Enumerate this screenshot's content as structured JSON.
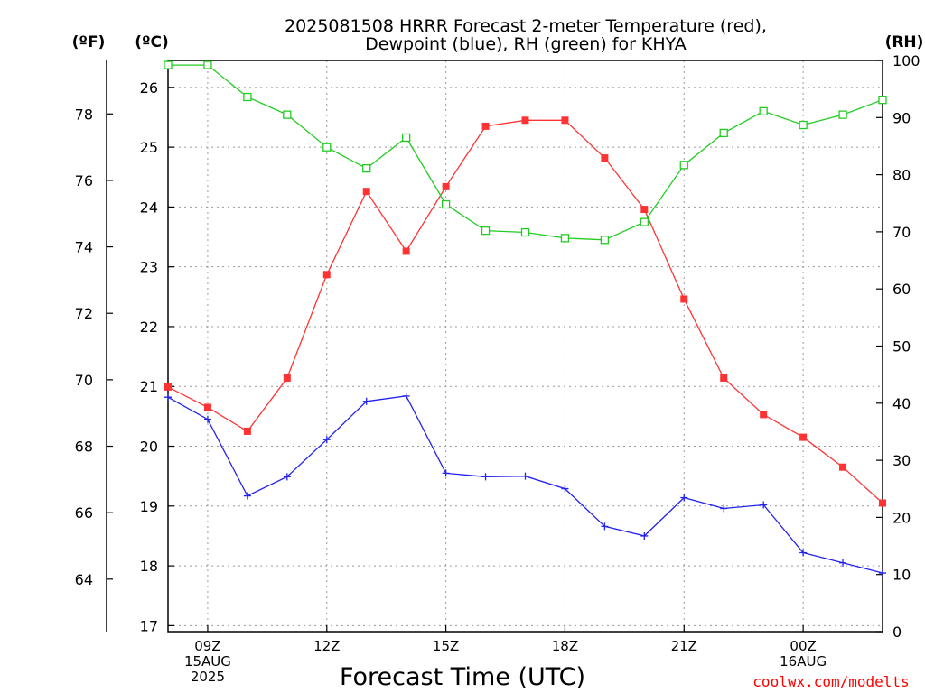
{
  "chart_data": {
    "type": "line",
    "title": [
      "2025081508 HRRR Forecast 2-meter Temperature (red),",
      "Dewpoint (blue), RH (green) for KHYA"
    ],
    "xlabel": "Forecast Time (UTC)",
    "credit": "coolwx.com/modelts",
    "axes": {
      "left_unit": "(ºF)",
      "center_unit": "(ºC)",
      "right_unit": "(RH)",
      "celsius_range": [
        16.9,
        26.45
      ],
      "fahrenheit_ticks": [
        "64",
        "66",
        "68",
        "70",
        "72",
        "74",
        "76",
        "78"
      ],
      "celsius_ticks": [
        "17",
        "18",
        "19",
        "20",
        "21",
        "22",
        "23",
        "24",
        "25",
        "26"
      ],
      "rh_range": [
        0,
        100
      ],
      "rh_ticks": [
        "0",
        "10",
        "20",
        "30",
        "40",
        "50",
        "60",
        "70",
        "80",
        "90",
        "100"
      ],
      "hour_range": [
        8,
        26
      ],
      "grid": true
    },
    "x_ticks": [
      {
        "hour": 9,
        "lines": [
          "09Z",
          "15AUG",
          "2025"
        ]
      },
      {
        "hour": 12,
        "lines": [
          "12Z"
        ]
      },
      {
        "hour": 15,
        "lines": [
          "15Z"
        ]
      },
      {
        "hour": 18,
        "lines": [
          "18Z"
        ]
      },
      {
        "hour": 21,
        "lines": [
          "21Z"
        ]
      },
      {
        "hour": 24,
        "lines": [
          "00Z",
          "16AUG"
        ]
      }
    ],
    "hours": [
      8,
      9,
      10,
      11,
      12,
      13,
      14,
      15,
      16,
      17,
      18,
      19,
      20,
      21,
      22,
      23,
      24,
      25,
      26
    ],
    "series": [
      {
        "name": "Temperature",
        "color": "#ff3333",
        "marker": "filled-square",
        "values": [
          20.99,
          20.65,
          20.25,
          21.14,
          22.87,
          24.26,
          23.26,
          24.34,
          25.35,
          25.45,
          25.45,
          24.82,
          23.96,
          22.46,
          21.14,
          20.53,
          20.15,
          19.65,
          19.05
        ]
      },
      {
        "name": "Dewpoint",
        "color": "#2222ee",
        "marker": "plus",
        "values": [
          20.82,
          20.45,
          19.17,
          19.49,
          20.11,
          20.75,
          20.84,
          19.55,
          19.49,
          19.5,
          19.29,
          18.66,
          18.5,
          19.14,
          18.96,
          19.02,
          18.22,
          18.05,
          17.88
        ]
      },
      {
        "name": "RH",
        "color": "#22cc22",
        "marker": "open-square",
        "values": [
          99.2,
          99.2,
          93.6,
          90.5,
          84.8,
          81.1,
          86.5,
          74.8,
          70.2,
          69.9,
          68.9,
          68.6,
          71.7,
          81.7,
          87.3,
          91.1,
          88.7,
          90.5,
          93.1
        ]
      }
    ]
  }
}
